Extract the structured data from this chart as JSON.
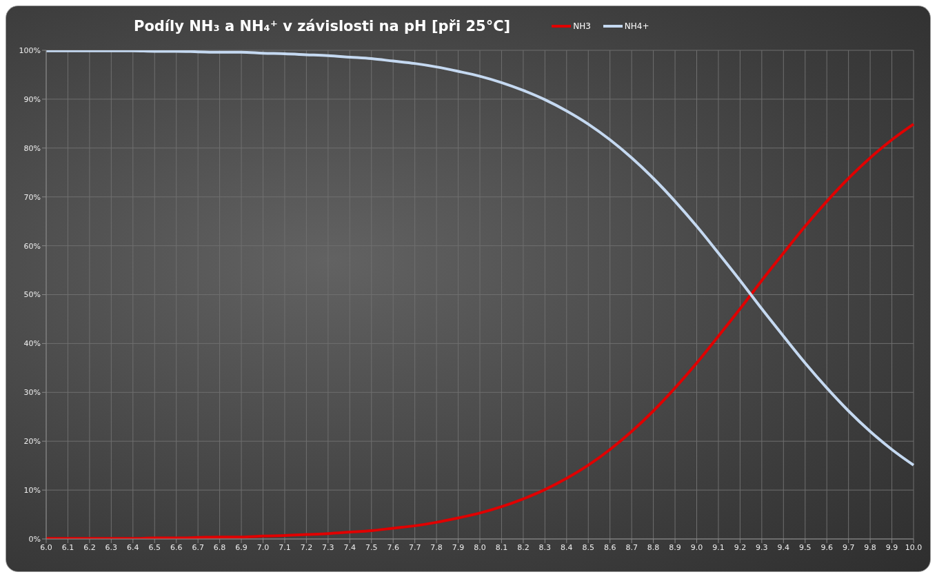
{
  "chart_data": {
    "type": "line",
    "title": "Podíly NH₃ a NH₄⁺ v závislosti na pH [při 25°C]",
    "categories": [
      "6.0",
      "6.1",
      "6.2",
      "6.3",
      "6.4",
      "6.5",
      "6.6",
      "6.7",
      "6.8",
      "6.9",
      "7.0",
      "7.1",
      "7.2",
      "7.3",
      "7.4",
      "7.5",
      "7.6",
      "7.7",
      "7.8",
      "7.9",
      "8.0",
      "8.1",
      "8.2",
      "8.3",
      "8.4",
      "8.5",
      "8.6",
      "8.7",
      "8.8",
      "8.9",
      "9.0",
      "9.1",
      "9.2",
      "9.3",
      "9.4",
      "9.5",
      "9.6",
      "9.7",
      "9.8",
      "9.9",
      "10.0"
    ],
    "series": [
      {
        "name": "NH3",
        "color": "#e00000",
        "values": [
          0.1,
          0.1,
          0.1,
          0.1,
          0.1,
          0.2,
          0.2,
          0.3,
          0.4,
          0.4,
          0.6,
          0.7,
          0.9,
          1.1,
          1.4,
          1.7,
          2.2,
          2.7,
          3.4,
          4.3,
          5.3,
          6.6,
          8.2,
          10.1,
          12.4,
          15.1,
          18.3,
          22.0,
          26.2,
          30.9,
          36.0,
          41.5,
          47.1,
          52.9,
          58.5,
          64.0,
          69.1,
          73.8,
          78.0,
          81.7,
          84.9
        ]
      },
      {
        "name": "NH4+",
        "color": "#c5d9f1",
        "values": [
          99.9,
          99.9,
          99.9,
          99.9,
          99.9,
          99.8,
          99.8,
          99.7,
          99.6,
          99.6,
          99.4,
          99.3,
          99.1,
          98.9,
          98.6,
          98.3,
          97.8,
          97.3,
          96.6,
          95.7,
          94.7,
          93.4,
          91.8,
          89.9,
          87.6,
          84.9,
          81.7,
          78.0,
          73.8,
          69.1,
          64.0,
          58.5,
          52.9,
          47.1,
          41.5,
          36.0,
          30.9,
          26.2,
          22.0,
          18.3,
          15.1
        ]
      }
    ],
    "ylim": [
      0,
      100
    ],
    "yticks": [
      {
        "value": 0,
        "label": "0%"
      },
      {
        "value": 10,
        "label": "10%"
      },
      {
        "value": 20,
        "label": "20%"
      },
      {
        "value": 30,
        "label": "30%"
      },
      {
        "value": 40,
        "label": "40%"
      },
      {
        "value": 50,
        "label": "50%"
      },
      {
        "value": 60,
        "label": "60%"
      },
      {
        "value": 70,
        "label": "70%"
      },
      {
        "value": 80,
        "label": "80%"
      },
      {
        "value": 90,
        "label": "90%"
      },
      {
        "value": 100,
        "label": "100%"
      }
    ],
    "grid": true,
    "legend": "top",
    "marker": "none",
    "line_style": "solid"
  }
}
